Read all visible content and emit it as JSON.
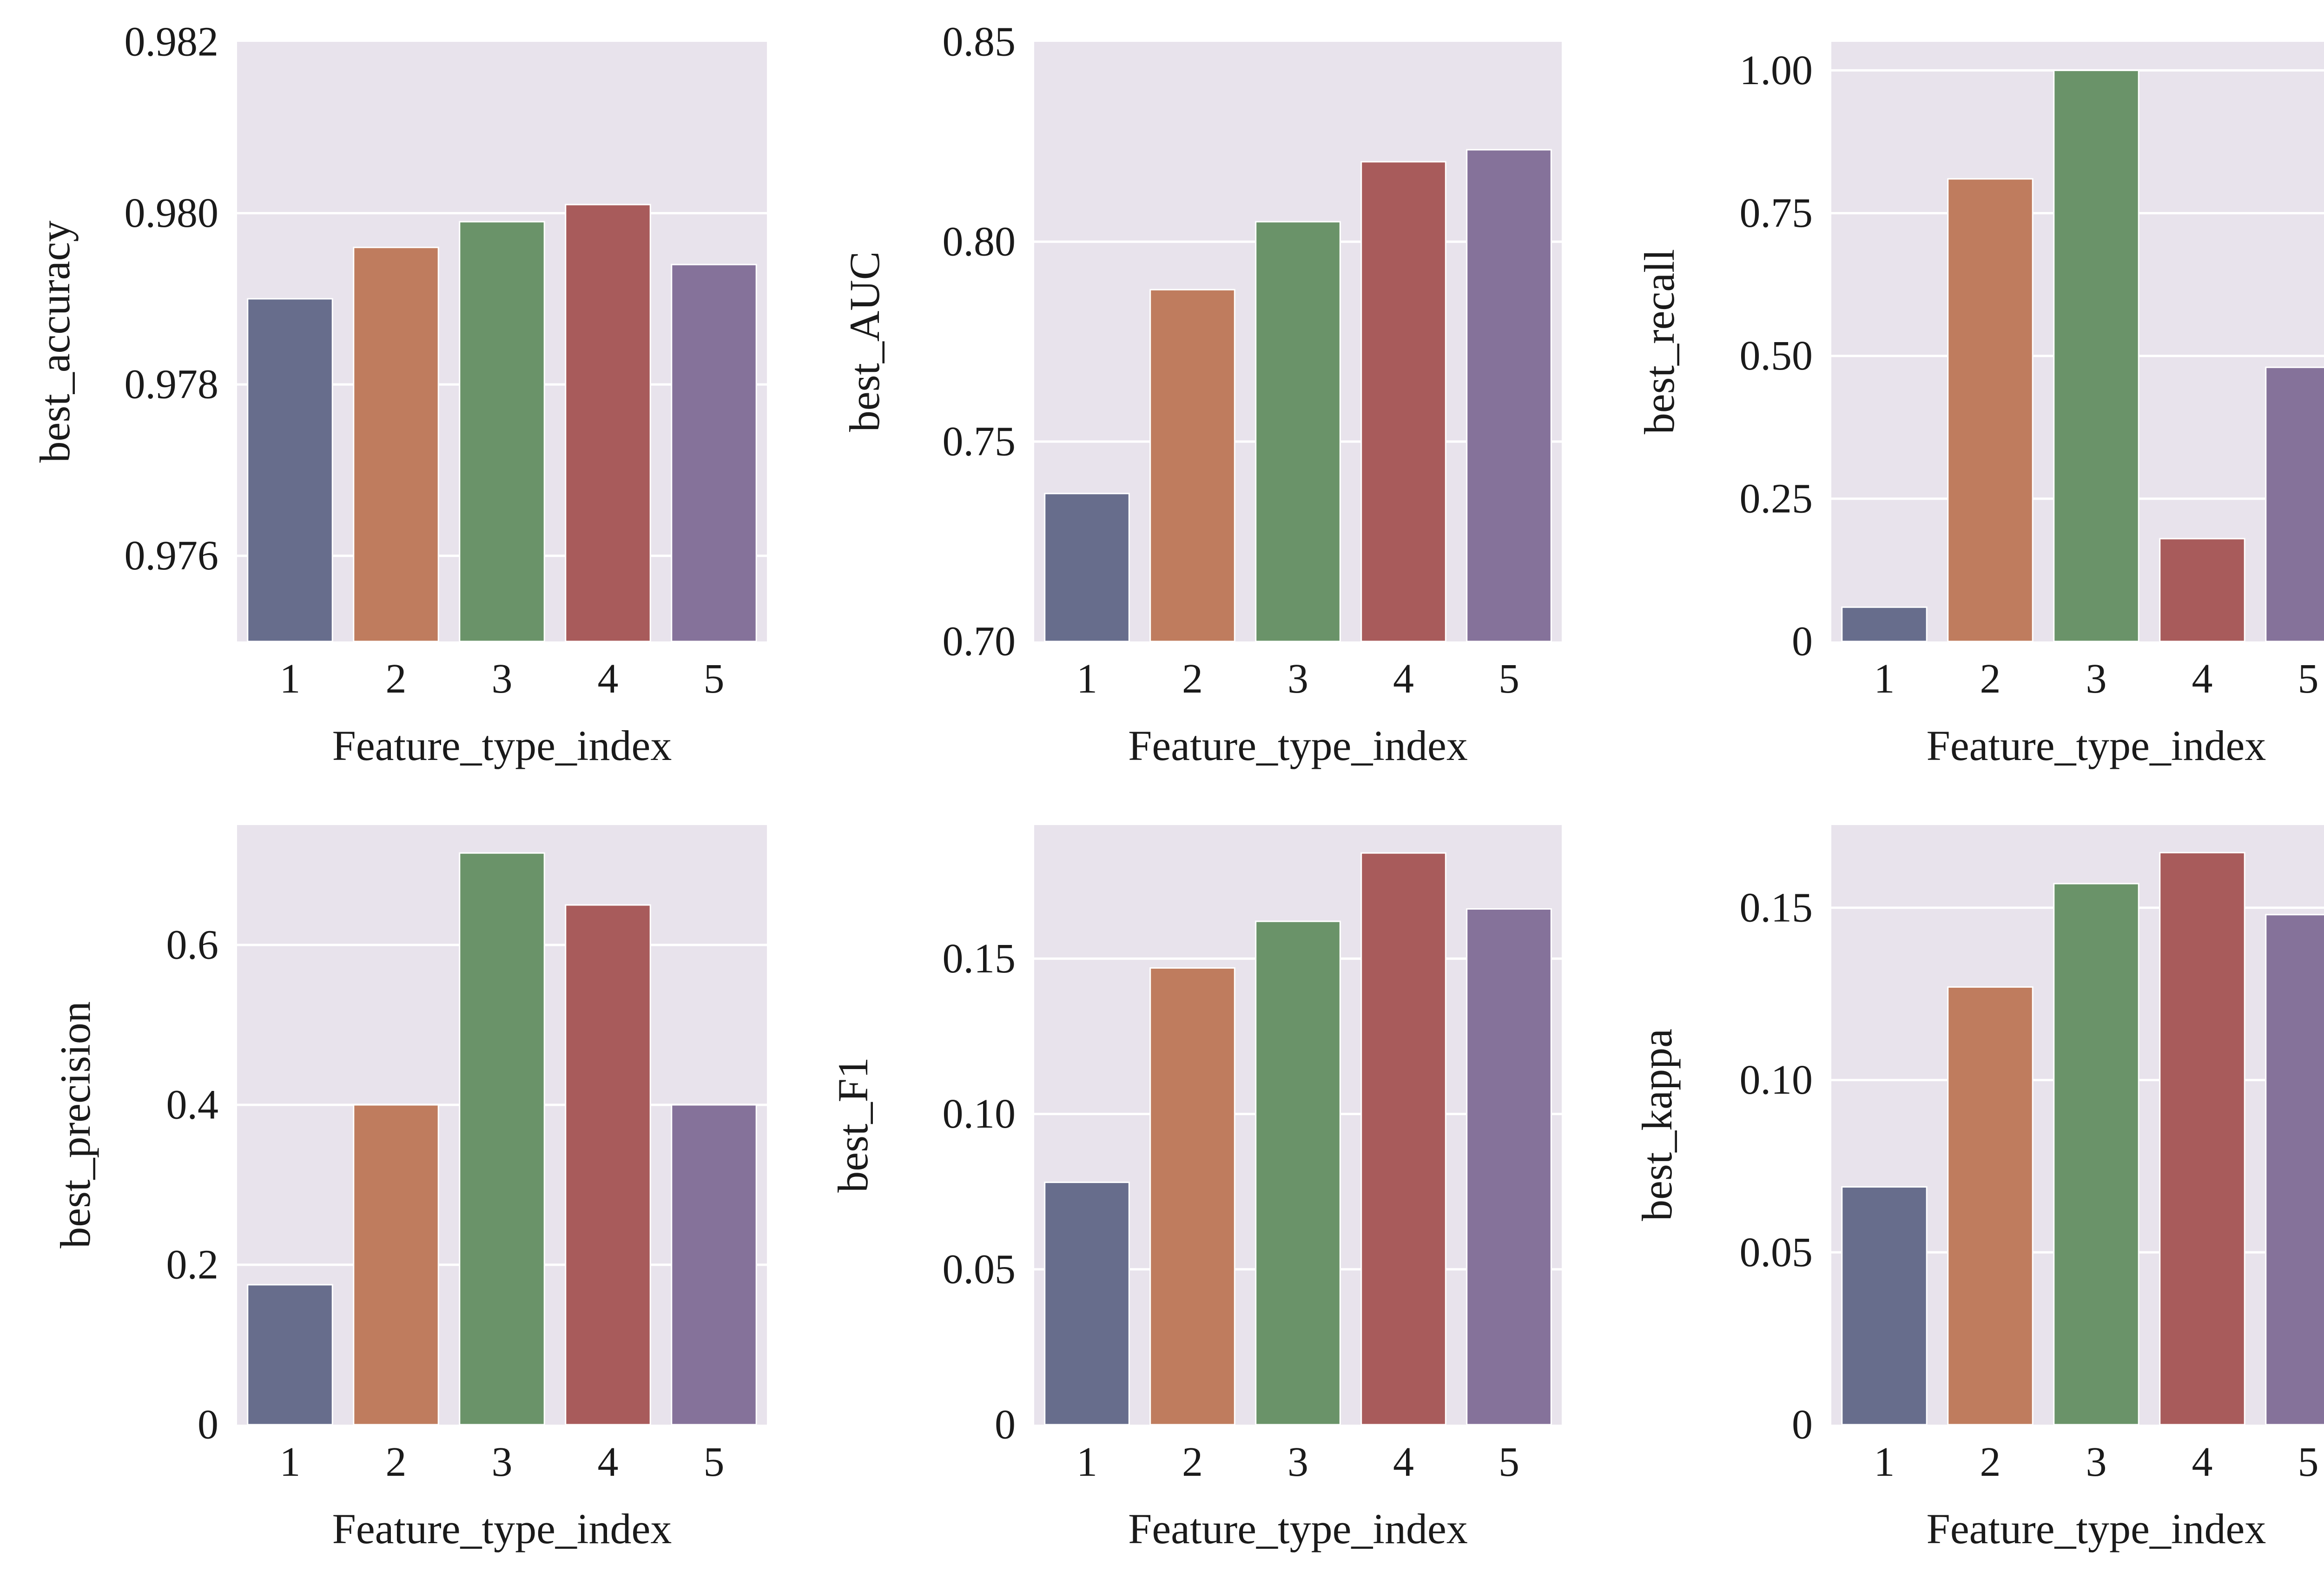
{
  "figure": {
    "colors": [
      "#676d8c",
      "#bf7c5e",
      "#6a9369",
      "#a85b5b",
      "#85729a"
    ],
    "plot_background": "#e8e3ec",
    "grid_color": "#ffffff"
  },
  "chart_data": [
    {
      "type": "bar",
      "categories": [
        "1",
        "2",
        "3",
        "4",
        "5"
      ],
      "values": [
        0.979,
        0.9796,
        0.9799,
        0.9801,
        0.9794
      ],
      "xlabel": "Feature_type_index",
      "ylabel": "best_accuracy",
      "ylim": [
        0.975,
        0.982
      ],
      "yticks": [
        0.976,
        0.978,
        0.98,
        0.982
      ],
      "ytick_labels": [
        "0.976",
        "0.978",
        "0.980",
        "0.982"
      ],
      "grid": true
    },
    {
      "type": "bar",
      "categories": [
        "1",
        "2",
        "3",
        "4",
        "5"
      ],
      "values": [
        0.737,
        0.788,
        0.805,
        0.82,
        0.823
      ],
      "xlabel": "Feature_type_index",
      "ylabel": "best_AUC",
      "ylim": [
        0.7,
        0.85
      ],
      "yticks": [
        0.7,
        0.75,
        0.8,
        0.85
      ],
      "ytick_labels": [
        "0.70",
        "0.75",
        "0.80",
        "0.85"
      ],
      "grid": true
    },
    {
      "type": "bar",
      "categories": [
        "1",
        "2",
        "3",
        "4",
        "5"
      ],
      "values": [
        0.06,
        0.81,
        1.0,
        0.18,
        0.48
      ],
      "xlabel": "Feature_type_index",
      "ylabel": "best_recall",
      "ylim": [
        0,
        1.05
      ],
      "yticks": [
        0,
        0.25,
        0.5,
        0.75,
        1.0
      ],
      "ytick_labels": [
        "0",
        "0.25",
        "0.50",
        "0.75",
        "1.00"
      ],
      "grid": true
    },
    {
      "type": "bar",
      "categories": [
        "1",
        "2",
        "3",
        "4",
        "5"
      ],
      "values": [
        0.175,
        0.4,
        0.715,
        0.65,
        0.4
      ],
      "xlabel": "Feature_type_index",
      "ylabel": "best_precision",
      "ylim": [
        0,
        0.75
      ],
      "yticks": [
        0,
        0.2,
        0.4,
        0.6
      ],
      "ytick_labels": [
        "0",
        "0.2",
        "0.4",
        "0.6"
      ],
      "grid": true
    },
    {
      "type": "bar",
      "categories": [
        "1",
        "2",
        "3",
        "4",
        "5"
      ],
      "values": [
        0.078,
        0.147,
        0.162,
        0.184,
        0.166
      ],
      "xlabel": "Feature_type_index",
      "ylabel": "best_F1",
      "ylim": [
        0,
        0.193
      ],
      "yticks": [
        0,
        0.05,
        0.1,
        0.15
      ],
      "ytick_labels": [
        "0",
        "0.05",
        "0.10",
        "0.15"
      ],
      "grid": true
    },
    {
      "type": "bar",
      "categories": [
        "1",
        "2",
        "3",
        "4",
        "5"
      ],
      "values": [
        0.069,
        0.127,
        0.157,
        0.166,
        0.148
      ],
      "xlabel": "Feature_type_index",
      "ylabel": "best_kappa",
      "ylim": [
        0,
        0.174
      ],
      "yticks": [
        0,
        0.05,
        0.1,
        0.15
      ],
      "ytick_labels": [
        "0",
        "0.05",
        "0.10",
        "0.15"
      ],
      "grid": true
    }
  ]
}
